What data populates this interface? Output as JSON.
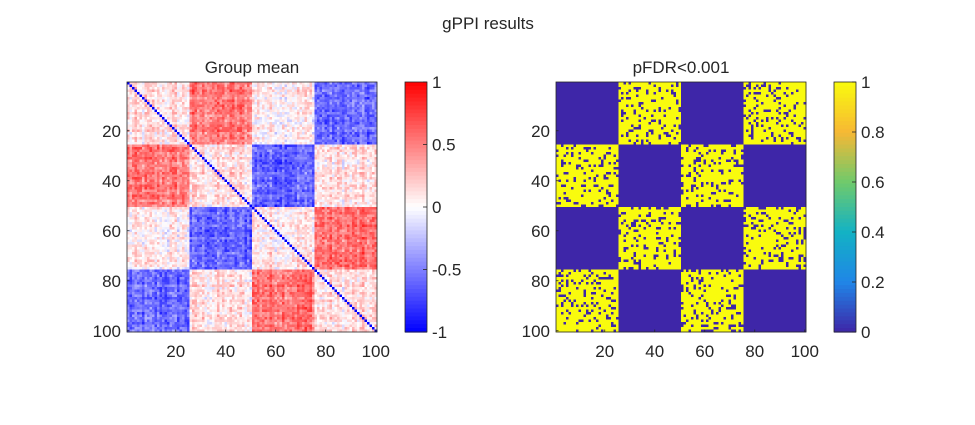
{
  "figure": {
    "title": "gPPI results"
  },
  "chart_data": [
    {
      "type": "heatmap",
      "title": "Group mean",
      "n": 100,
      "blocks": [
        25,
        25,
        25,
        25
      ],
      "block_means": [
        [
          0.1,
          0.5,
          0.05,
          -0.6
        ],
        [
          0.5,
          0.1,
          -0.6,
          0.1
        ],
        [
          0.05,
          -0.6,
          0.1,
          0.55
        ],
        [
          -0.6,
          0.1,
          0.55,
          0.1
        ]
      ],
      "diagonal_value": -1,
      "x_ticks": [
        20,
        40,
        60,
        80,
        100
      ],
      "y_ticks": [
        20,
        40,
        60,
        80,
        100
      ],
      "colorbar": {
        "min": -1,
        "max": 1,
        "ticks": [
          -1,
          -0.5,
          0,
          0.5,
          1
        ],
        "tick_labels": [
          "-1",
          "-0.5",
          "0",
          "0.5",
          "1"
        ],
        "colormap": "blue-white-red"
      }
    },
    {
      "type": "heatmap",
      "title": "pFDR<0.001",
      "n": 100,
      "blocks": [
        25,
        25,
        25,
        25
      ],
      "significant_pairs": [
        [
          0,
          1
        ],
        [
          1,
          0
        ],
        [
          1,
          2
        ],
        [
          2,
          1
        ],
        [
          0,
          3
        ],
        [
          3,
          0
        ],
        [
          2,
          3
        ],
        [
          3,
          2
        ]
      ],
      "fill_fraction": 0.82,
      "x_ticks": [
        20,
        40,
        60,
        80,
        100
      ],
      "y_ticks": [
        20,
        40,
        60,
        80,
        100
      ],
      "colorbar": {
        "min": 0,
        "max": 1,
        "ticks": [
          0,
          0.2,
          0.4,
          0.6,
          0.8,
          1
        ],
        "tick_labels": [
          "0",
          "0.2",
          "0.4",
          "0.6",
          "0.8",
          "1"
        ],
        "colormap": "parula"
      }
    }
  ],
  "colors": {
    "low": "#0000ff",
    "mid": "#ffffff",
    "high": "#ff0000",
    "parula_low": "#3e26a8",
    "parula_high": "#f9fb0e"
  }
}
